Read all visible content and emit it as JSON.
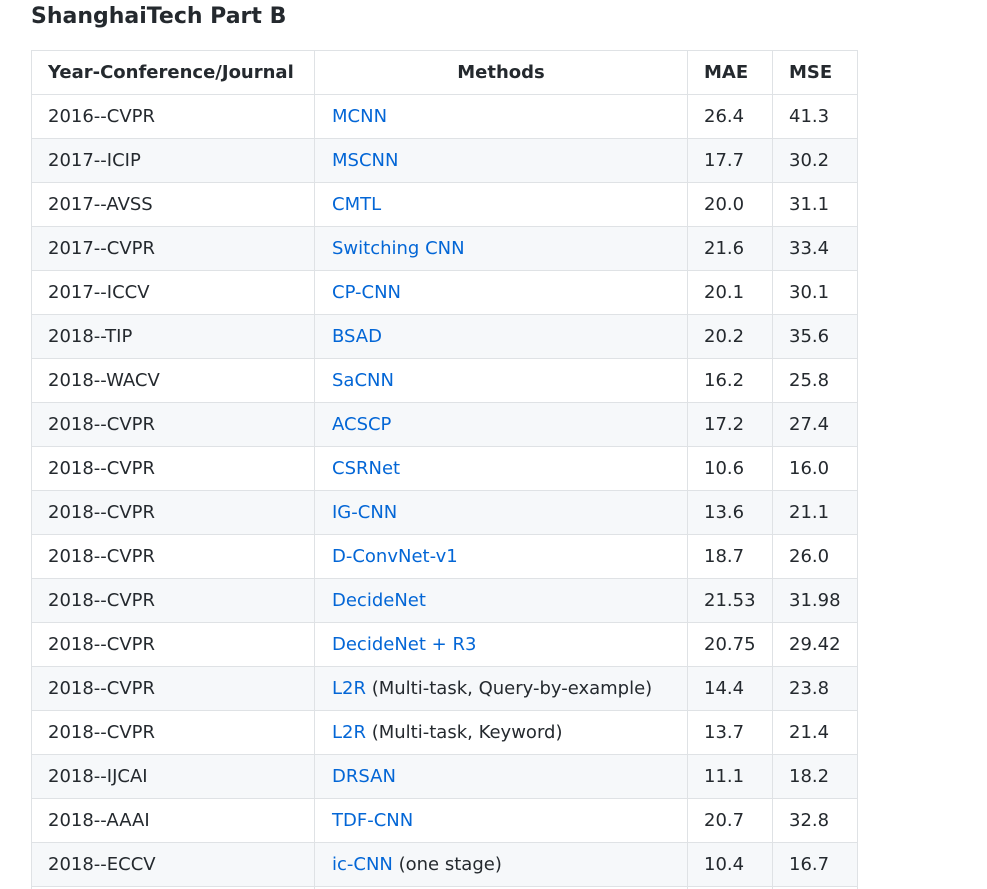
{
  "heading": "ShanghaiTech Part B",
  "columns": {
    "year": "Year-Conference/Journal",
    "method": "Methods",
    "mae": "MAE",
    "mse": "MSE"
  },
  "rows": [
    {
      "year": "2016--CVPR",
      "method": "MCNN",
      "note": "",
      "mae": "26.4",
      "mse": "41.3"
    },
    {
      "year": "2017--ICIP",
      "method": "MSCNN",
      "note": "",
      "mae": "17.7",
      "mse": "30.2"
    },
    {
      "year": "2017--AVSS",
      "method": "CMTL",
      "note": "",
      "mae": "20.0",
      "mse": "31.1"
    },
    {
      "year": "2017--CVPR",
      "method": "Switching CNN",
      "note": "",
      "mae": "21.6",
      "mse": "33.4"
    },
    {
      "year": "2017--ICCV",
      "method": "CP-CNN",
      "note": "",
      "mae": "20.1",
      "mse": "30.1"
    },
    {
      "year": "2018--TIP",
      "method": "BSAD",
      "note": "",
      "mae": "20.2",
      "mse": "35.6"
    },
    {
      "year": "2018--WACV",
      "method": "SaCNN",
      "note": "",
      "mae": "16.2",
      "mse": "25.8"
    },
    {
      "year": "2018--CVPR",
      "method": "ACSCP",
      "note": "",
      "mae": "17.2",
      "mse": "27.4"
    },
    {
      "year": "2018--CVPR",
      "method": "CSRNet",
      "note": "",
      "mae": "10.6",
      "mse": "16.0"
    },
    {
      "year": "2018--CVPR",
      "method": "IG-CNN",
      "note": "",
      "mae": "13.6",
      "mse": "21.1"
    },
    {
      "year": "2018--CVPR",
      "method": "D-ConvNet-v1",
      "note": "",
      "mae": "18.7",
      "mse": "26.0"
    },
    {
      "year": "2018--CVPR",
      "method": "DecideNet",
      "note": "",
      "mae": "21.53",
      "mse": "31.98"
    },
    {
      "year": "2018--CVPR",
      "method": "DecideNet + R3",
      "note": "",
      "mae": "20.75",
      "mse": "29.42"
    },
    {
      "year": "2018--CVPR",
      "method": "L2R",
      "note": " (Multi-task, Query-by-example)",
      "mae": "14.4",
      "mse": "23.8"
    },
    {
      "year": "2018--CVPR",
      "method": "L2R",
      "note": " (Multi-task, Keyword)",
      "mae": "13.7",
      "mse": "21.4"
    },
    {
      "year": "2018--IJCAI",
      "method": "DRSAN",
      "note": "",
      "mae": "11.1",
      "mse": "18.2"
    },
    {
      "year": "2018--AAAI",
      "method": "TDF-CNN",
      "note": "",
      "mae": "20.7",
      "mse": "32.8"
    },
    {
      "year": "2018--ECCV",
      "method": "ic-CNN",
      "note": " (one stage)",
      "mae": "10.4",
      "mse": "16.7"
    },
    {
      "year": "",
      "method": "",
      "note": "",
      "mae": "",
      "mse": ""
    }
  ]
}
